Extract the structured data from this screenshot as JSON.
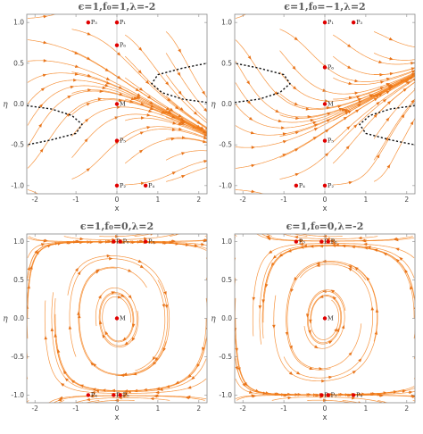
{
  "chart_data": [
    {
      "type": "streamplot",
      "title": "ϵ=1,f₀=1,λ=-2",
      "xlabel": "x",
      "ylabel": "η",
      "xlim": [
        -2.2,
        2.2
      ],
      "ylim": [
        -1.1,
        1.1
      ],
      "xticks": [
        -2,
        -1,
        0,
        1,
        2
      ],
      "yticks": [
        -1.0,
        -0.5,
        0.0,
        0.5,
        1.0
      ],
      "params": {
        "eps": 1,
        "f0": 1,
        "lambda": -2
      },
      "stream_color": "#f58220",
      "points": [
        {
          "label": "P₃",
          "x": -0.7,
          "y": 1.0
        },
        {
          "label": "P₁",
          "x": 0.0,
          "y": 1.0
        },
        {
          "label": "P₆",
          "x": 0.0,
          "y": 0.72
        },
        {
          "label": "M",
          "x": 0.0,
          "y": 0.0
        },
        {
          "label": "P₅",
          "x": 0.0,
          "y": -0.45
        },
        {
          "label": "P₂",
          "x": 0.0,
          "y": -1.0
        },
        {
          "label": "P₄",
          "x": 0.7,
          "y": -1.0
        }
      ],
      "separatrix": "left-bottom-right-top"
    },
    {
      "type": "streamplot",
      "title": "ϵ=1,f₀=−1,λ=2",
      "xlabel": "x",
      "ylabel": "η",
      "xlim": [
        -2.2,
        2.2
      ],
      "ylim": [
        -1.1,
        1.1
      ],
      "xticks": [
        -2,
        -1,
        0,
        1,
        2
      ],
      "yticks": [
        -1.0,
        -0.5,
        0.0,
        0.5,
        1.0
      ],
      "params": {
        "eps": 1,
        "f0": -1,
        "lambda": 2
      },
      "stream_color": "#f58220",
      "points": [
        {
          "label": "P₁",
          "x": 0.0,
          "y": 1.0
        },
        {
          "label": "P₃",
          "x": 0.7,
          "y": 1.0
        },
        {
          "label": "P₆",
          "x": 0.0,
          "y": 0.45
        },
        {
          "label": "M",
          "x": 0.0,
          "y": 0.0
        },
        {
          "label": "P₅",
          "x": 0.0,
          "y": -0.45
        },
        {
          "label": "P₄",
          "x": -0.7,
          "y": -1.0
        },
        {
          "label": "P₂",
          "x": 0.0,
          "y": -1.0
        }
      ],
      "separatrix": "left-top-right-bottom"
    },
    {
      "type": "streamplot",
      "title": "ϵ=1,f₀=0,λ=2",
      "xlabel": "x",
      "ylabel": "η",
      "xlim": [
        -2.2,
        2.2
      ],
      "ylim": [
        -1.1,
        1.1
      ],
      "xticks": [
        -2,
        -1,
        0,
        1,
        2
      ],
      "yticks": [
        -1.0,
        -0.5,
        0.0,
        0.5,
        1.0
      ],
      "params": {
        "eps": 1,
        "f0": 0,
        "lambda": 2
      },
      "stream_color": "#f58220",
      "points": [
        {
          "label": "P₁",
          "x": -0.08,
          "y": 1.0
        },
        {
          "label": "P₆",
          "x": 0.08,
          "y": 1.0
        },
        {
          "label": "P₃",
          "x": 0.7,
          "y": 1.0
        },
        {
          "label": "M",
          "x": 0.0,
          "y": 0.0
        },
        {
          "label": "P₄",
          "x": -0.7,
          "y": -1.0
        },
        {
          "label": "P₂",
          "x": -0.08,
          "y": -1.0
        },
        {
          "label": "P₅",
          "x": 0.08,
          "y": -1.0
        }
      ],
      "separatrix": "none"
    },
    {
      "type": "streamplot",
      "title": "ϵ=1,f₀=0,λ=-2",
      "xlabel": "x",
      "ylabel": "η",
      "xlim": [
        -2.2,
        2.2
      ],
      "ylim": [
        -1.1,
        1.1
      ],
      "xticks": [
        -2,
        -1,
        0,
        1,
        2
      ],
      "yticks": [
        -1.0,
        -0.5,
        0.0,
        0.5,
        1.0
      ],
      "params": {
        "eps": 1,
        "f0": 0,
        "lambda": -2
      },
      "stream_color": "#f58220",
      "points": [
        {
          "label": "P₃",
          "x": -0.7,
          "y": 1.0
        },
        {
          "label": "P₁",
          "x": -0.08,
          "y": 1.0
        },
        {
          "label": "P₆",
          "x": 0.08,
          "y": 1.0
        },
        {
          "label": "M",
          "x": 0.0,
          "y": 0.0
        },
        {
          "label": "P₂",
          "x": -0.08,
          "y": -1.0
        },
        {
          "label": "P₅",
          "x": 0.08,
          "y": -1.0
        },
        {
          "label": "P₄",
          "x": 0.7,
          "y": -1.0
        }
      ],
      "separatrix": "none"
    }
  ]
}
